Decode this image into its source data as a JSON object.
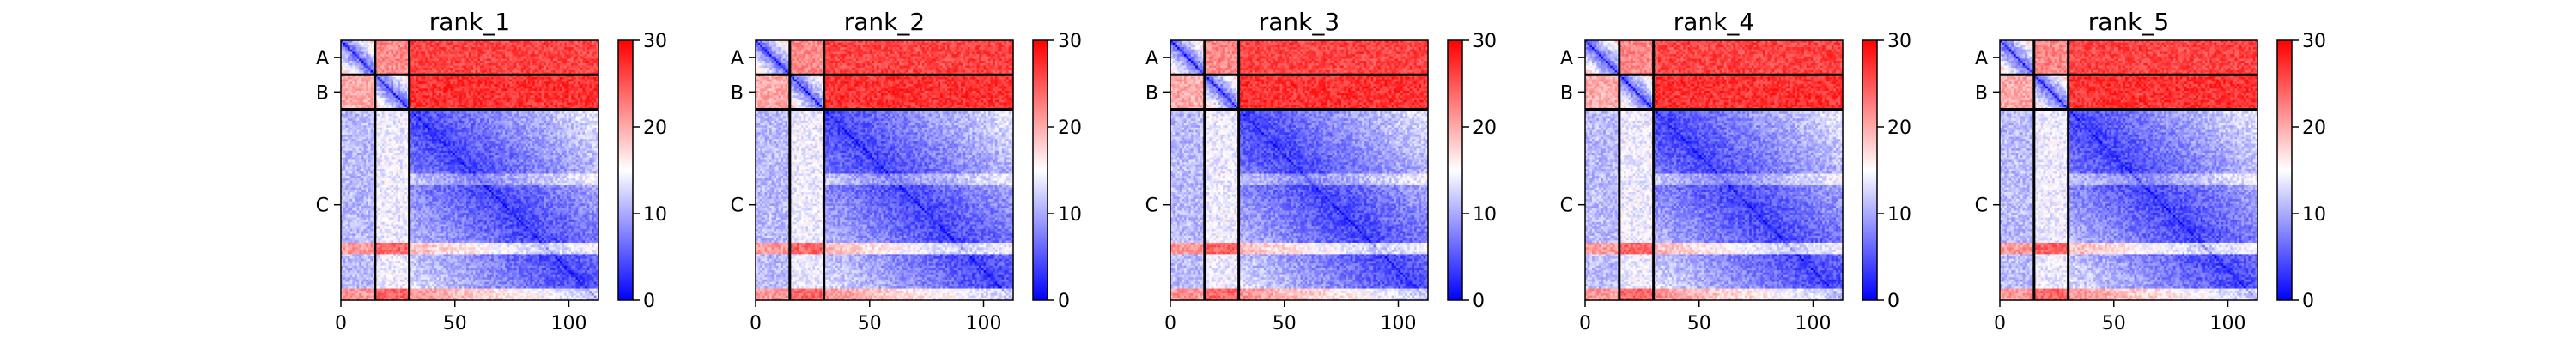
{
  "chart_data": {
    "type": "heatmap",
    "figure_name": "predicted-aligned-error-matrices",
    "x_ticks": [
      0,
      50,
      100
    ],
    "x_range": [
      0,
      113
    ],
    "chains": [
      {
        "name": "A",
        "start": 0,
        "end": 15
      },
      {
        "name": "B",
        "start": 15,
        "end": 30
      },
      {
        "name": "C",
        "start": 30,
        "end": 113
      }
    ],
    "colorbar": {
      "range": [
        0,
        30
      ],
      "ticks": [
        0,
        10,
        20,
        30
      ],
      "colors": [
        "#0000ff",
        "#ffffff",
        "#ff0000"
      ]
    },
    "panels": [
      {
        "title": "rank_1",
        "chains": [
          "A",
          "B",
          "C"
        ],
        "colorbar_ticks": [
          "0",
          "10",
          "20",
          "30"
        ],
        "x_tick_labels": [
          "0",
          "50",
          "100"
        ]
      },
      {
        "title": "rank_2",
        "chains": [
          "A",
          "B",
          "C"
        ],
        "colorbar_ticks": [
          "0",
          "10",
          "20",
          "30"
        ],
        "x_tick_labels": [
          "0",
          "50",
          "100"
        ]
      },
      {
        "title": "rank_3",
        "chains": [
          "A",
          "B",
          "C"
        ],
        "colorbar_ticks": [
          "0",
          "10",
          "20",
          "30"
        ],
        "x_tick_labels": [
          "0",
          "50",
          "100"
        ]
      },
      {
        "title": "rank_4",
        "chains": [
          "A",
          "B",
          "C"
        ],
        "colorbar_ticks": [
          "0",
          "10",
          "20",
          "30"
        ],
        "x_tick_labels": [
          "0",
          "50",
          "100"
        ]
      },
      {
        "title": "rank_5",
        "chains": [
          "A",
          "B",
          "C"
        ],
        "colorbar_ticks": [
          "0",
          "10",
          "20",
          "30"
        ],
        "x_tick_labels": [
          "0",
          "50",
          "100"
        ]
      }
    ],
    "block_values": {
      "AA": 6,
      "AB": 22,
      "AC": 26,
      "BA": 20,
      "BB": 6,
      "BC": 27,
      "CA": 11,
      "CB": 14,
      "CC": 4
    }
  }
}
